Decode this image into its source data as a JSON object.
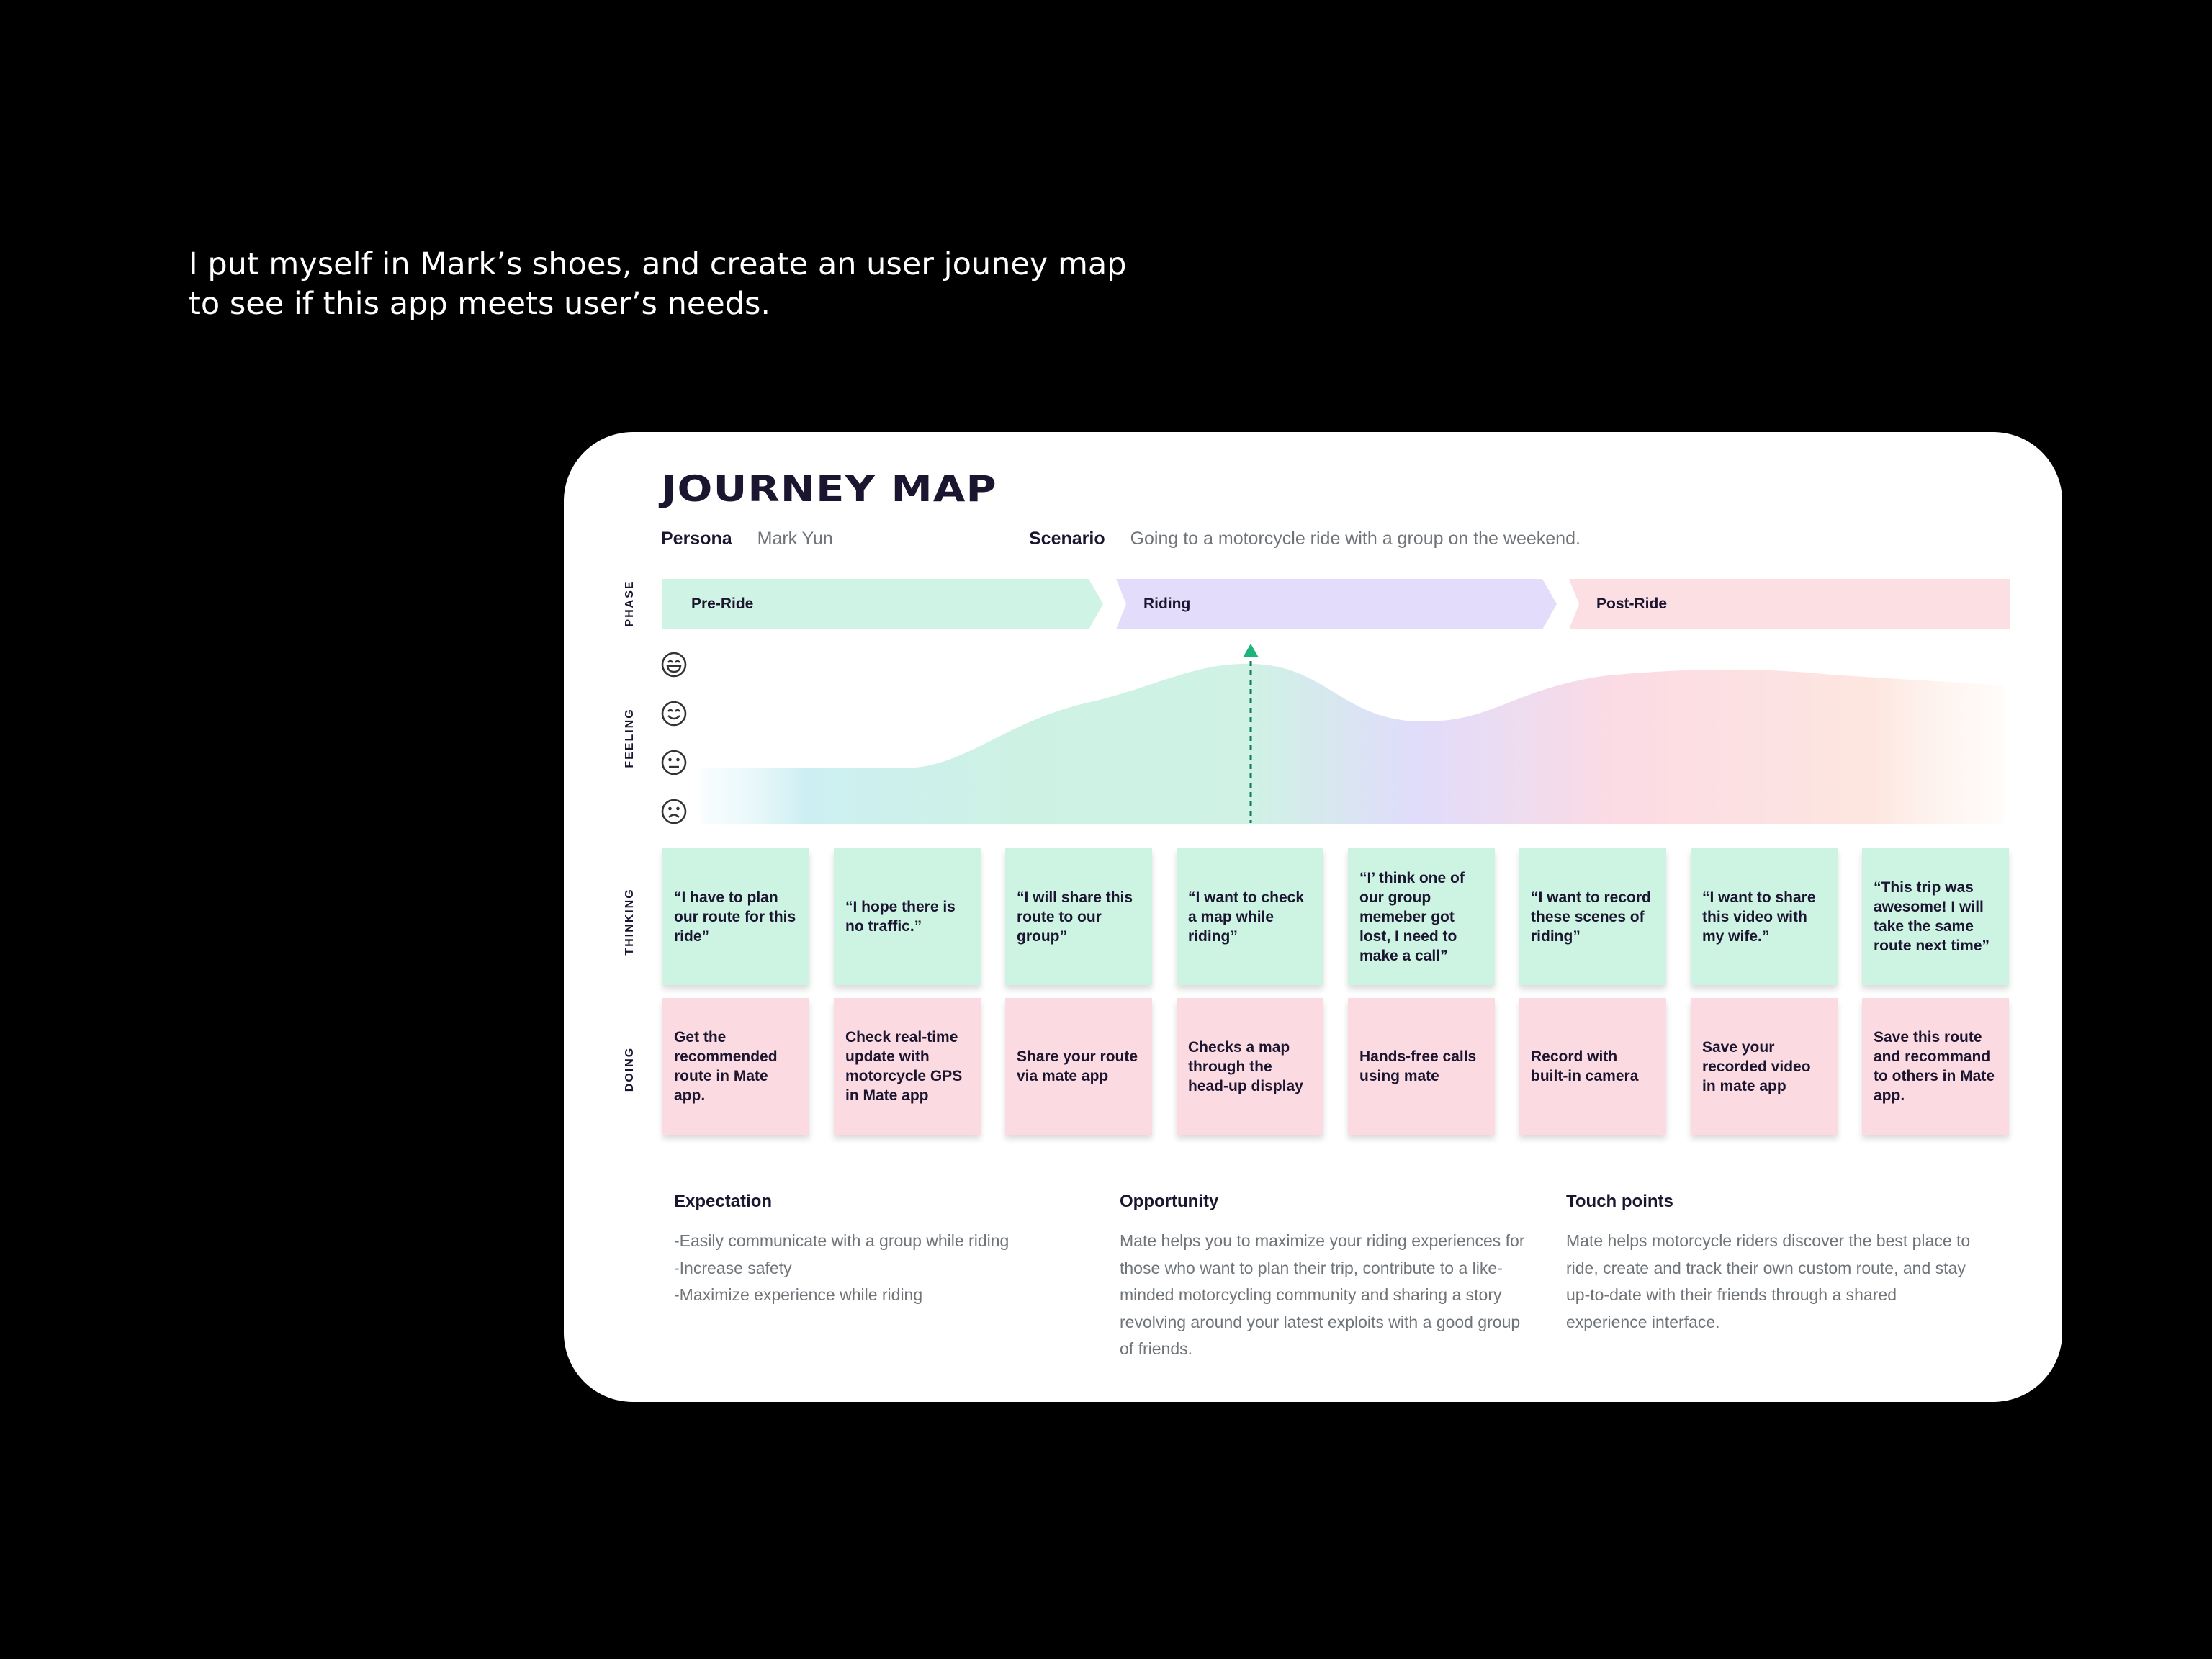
{
  "intro": {
    "line1": "I put myself in Mark’s shoes, and create an user jouney map",
    "line2": "to see if this app meets user’s needs."
  },
  "journey": {
    "title": "JOURNEY MAP",
    "persona_label": "Persona",
    "persona_value": "Mark Yun",
    "scenario_label": "Scenario",
    "scenario_value": "Going to a motorcycle ride with a group on the weekend.",
    "row_labels": {
      "phase": "PHASE",
      "feeling": "FEELING",
      "thinking": "THINKING",
      "doing": "DOING"
    },
    "phases": [
      {
        "label": "Pre-Ride",
        "color": "#cff3e4"
      },
      {
        "label": "Riding",
        "color": "#e3ddfb"
      },
      {
        "label": "Post-Ride",
        "color": "#fbdfe3"
      }
    ],
    "feeling_levels": [
      "very-happy-face-icon",
      "happy-face-icon",
      "neutral-face-icon",
      "sad-face-icon"
    ],
    "feeling_peak_marker": "peak-arrow-icon",
    "thinking": [
      "“I have to plan our route for this ride”",
      "“I hope there is no traffic.”",
      "“I will share this route to our group”",
      "“I want to check a map while riding”",
      "“I’ think one of our group memeber got lost, I need to make a call”",
      "“I want to record these scenes of riding”",
      "“I want to share this video with my wife.”",
      "“This trip was awesome! I will take the same route next time”"
    ],
    "doing": [
      "Get the recommended route in Mate app.",
      "Check real-time update with motorcycle GPS in Mate app",
      "Share your route via mate app",
      "Checks a map through the head-up display",
      "Hands-free calls using mate",
      "Record with built-in camera",
      "Save your recorded video in mate app",
      "Save this route and recommand to others in Mate app."
    ],
    "expectation": {
      "title": "Expectation",
      "items": [
        "-Easily communicate with a group while riding",
        "-Increase safety",
        "-Maximize experience while riding"
      ]
    },
    "opportunity": {
      "title": "Opportunity",
      "text": "Mate helps you to maximize your riding experiences for those who want to plan their trip, contribute to a like-minded motorcycling community and sharing a story revolving around your latest exploits with a good group of friends."
    },
    "touch_points": {
      "title": "Touch points",
      "text": "Mate helps motorcycle riders discover the best place to ride, create and track their own custom route, and stay up-to-date with their friends through a shared experience interface."
    }
  }
}
